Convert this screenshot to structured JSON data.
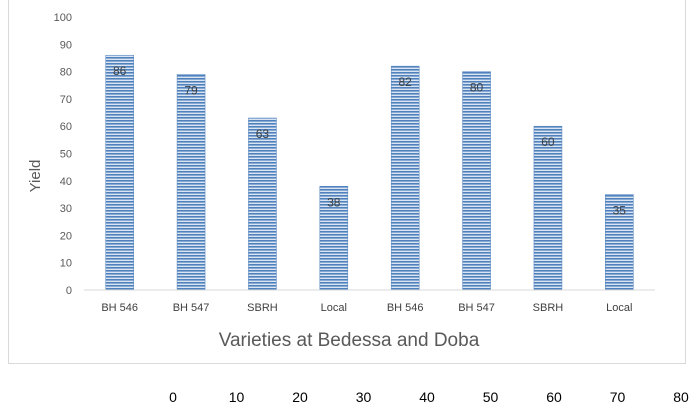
{
  "chart_data": {
    "type": "bar",
    "categories": [
      "BH 546",
      "BH 547",
      "SBRH",
      "Local",
      "BH 546",
      "BH 547",
      "SBRH",
      "Local"
    ],
    "series": [
      {
        "values": [
          86,
          79,
          63,
          38,
          82,
          80,
          60,
          35
        ]
      }
    ],
    "data_labels": [
      "86",
      "79",
      "63",
      "38",
      "82",
      "80",
      "60",
      "35"
    ],
    "ylabel": "Yield",
    "xlabel": "Varieties at Bedessa and Doba",
    "ylim": [
      0,
      100
    ],
    "yticks": [
      0,
      10,
      20,
      30,
      40,
      50,
      60,
      70,
      80,
      90,
      100
    ],
    "grid": false,
    "bar_color": "#4f81bd",
    "bar_stripe_color": "#dbe5f1"
  },
  "below_axis": {
    "ticks": [
      "0",
      "10",
      "20",
      "30",
      "40",
      "50",
      "60",
      "70",
      "80"
    ]
  }
}
